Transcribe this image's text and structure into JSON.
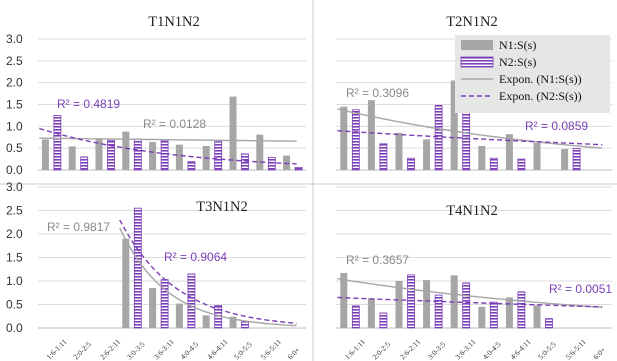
{
  "chart_data": [
    {
      "type": "bar",
      "title": "T1N1N2",
      "ylim": [
        0,
        3
      ],
      "yticks": [
        "0.0",
        "0.5",
        "1.0",
        "1.5",
        "2.0",
        "2.5",
        "3.0"
      ],
      "categories": [
        "1:6-1:11",
        "2:0-2:5",
        "2:6-2:11",
        "3:0-3:5",
        "3:6-3:11",
        "4:0-4:5",
        "4:6-4:11",
        "5:0-5:5",
        "5:6-5:11",
        "6:0+"
      ],
      "show_xticks": false,
      "series": [
        {
          "name": "N1:S(s)",
          "values": [
            0.7,
            0.54,
            0.7,
            0.88,
            0.64,
            0.58,
            0.55,
            1.68,
            0.81,
            0.33
          ]
        },
        {
          "name": "N2:S(s)",
          "values": [
            1.25,
            0.3,
            0.68,
            0.71,
            0.68,
            0.19,
            0.65,
            0.37,
            0.29,
            0.06
          ]
        }
      ],
      "trendlines": [
        {
          "series": "N1:S(s)",
          "type": "exponential",
          "start": 0.73,
          "end": 0.66,
          "r2": "R² = 0.0128"
        },
        {
          "series": "N2:S(s)",
          "type": "exponential",
          "start": 0.95,
          "end": 0.14,
          "r2": "R² = 0.4819"
        }
      ]
    },
    {
      "type": "bar",
      "title": "T2N1N2",
      "ylim": [
        0,
        3
      ],
      "categories": [
        "1:6-1:11",
        "2:0-2:5",
        "2:6-2:11",
        "3:0-3:5",
        "3:6-3:11",
        "4:0-4:5",
        "4:6-4:11",
        "5:0-5:5",
        "5:6-5:11",
        "6:0+"
      ],
      "show_xticks": false,
      "series": [
        {
          "name": "N1:S(s)",
          "values": [
            1.45,
            1.6,
            0.85,
            0.7,
            2.05,
            0.55,
            0.82,
            0.62,
            0.48,
            null
          ]
        },
        {
          "name": "N2:S(s)",
          "values": [
            1.38,
            0.6,
            0.27,
            1.48,
            2.02,
            0.27,
            0.25,
            null,
            0.49,
            null
          ]
        }
      ],
      "trendlines": [
        {
          "series": "N1:S(s)",
          "type": "exponential",
          "start": 1.4,
          "end": 0.5,
          "r2": "R² = 0.3096"
        },
        {
          "series": "N2:S(s)",
          "type": "exponential",
          "start": 0.9,
          "end": 0.58,
          "r2": "R² = 0.0859"
        }
      ],
      "legend": {
        "placement": "top-right",
        "entries": [
          "N1:S(s)",
          "N2:S(s)",
          "Expon. (N1:S(s))",
          "Expon. (N2:S(s))"
        ]
      }
    },
    {
      "type": "bar",
      "title": "T3N1N2",
      "ylim": [
        0,
        3
      ],
      "yticks": [
        "0.0",
        "0.5",
        "1.0",
        "1.5",
        "2.0",
        "2.5",
        "3.0"
      ],
      "categories": [
        "1:6-1:11",
        "2:0-2:5",
        "2:6-2:11",
        "3:0-3:5",
        "3:6-3:11",
        "4:0-4:5",
        "4:6-4:11",
        "5:0-5:5",
        "5:6-5:11",
        "6:0+"
      ],
      "show_xticks": true,
      "series": [
        {
          "name": "N1:S(s)",
          "values": [
            null,
            null,
            null,
            1.9,
            0.85,
            0.52,
            0.27,
            0.24,
            null,
            null
          ]
        },
        {
          "name": "N2:S(s)",
          "values": [
            null,
            null,
            null,
            2.55,
            1.03,
            1.15,
            0.48,
            0.13,
            null,
            null
          ]
        }
      ],
      "trendlines": [
        {
          "series": "N1:S(s)",
          "type": "exponential",
          "start": 2.13,
          "end": 0.05,
          "r2": "R² = 0.9817",
          "from_index": 3
        },
        {
          "series": "N2:S(s)",
          "type": "exponential",
          "start": 2.3,
          "end": 0.1,
          "r2": "R² = 0.9064",
          "from_index": 3
        }
      ]
    },
    {
      "type": "bar",
      "title": "T4N1N2",
      "ylim": [
        0,
        3
      ],
      "categories": [
        "1:6-1:11",
        "2:0-2:5",
        "2:6-2:11",
        "3:0-3:5",
        "3:6-3:11",
        "4:0-4:5",
        "4:6-4:11",
        "5:0-5:5",
        "5:6-5:11",
        "6:0+"
      ],
      "show_xticks": true,
      "series": [
        {
          "name": "N1:S(s)",
          "values": [
            1.17,
            0.63,
            1.0,
            1.02,
            1.12,
            0.45,
            0.65,
            0.48,
            null,
            null
          ]
        },
        {
          "name": "N2:S(s)",
          "values": [
            0.47,
            0.32,
            1.13,
            0.7,
            0.96,
            0.55,
            0.77,
            0.2,
            null,
            null
          ]
        }
      ],
      "trendlines": [
        {
          "series": "N1:S(s)",
          "type": "exponential",
          "start": 1.05,
          "end": 0.44,
          "r2": "R² = 0.3657"
        },
        {
          "series": "N2:S(s)",
          "type": "exponential",
          "start": 0.65,
          "end": 0.45,
          "r2": "R² = 0.0051"
        }
      ]
    }
  ],
  "colors": {
    "n1_bar": "#a6a6a6",
    "n2_stripe": "#7b3fb7",
    "n2_fill": "#ffffff",
    "trend_n1": "#a6a6a6",
    "trend_n2": "#7b3fb7",
    "r2_n1": "#8a8a8a",
    "r2_n2": "#7b3fb7"
  }
}
